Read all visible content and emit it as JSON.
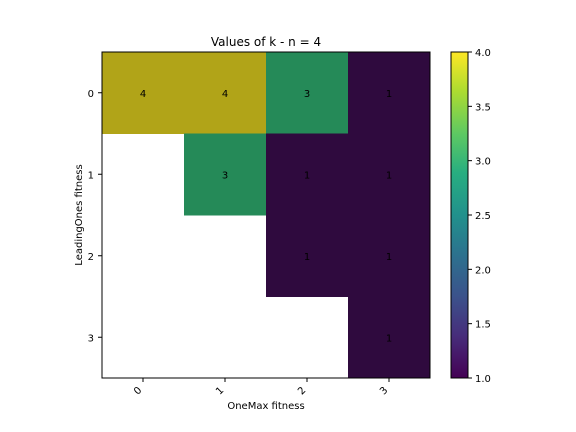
{
  "chart_data": {
    "type": "heatmap",
    "title": "Values of k - n = 4",
    "xlabel": "OneMax fitness",
    "ylabel": "LeadingOnes fitness",
    "x_ticks": [
      "0",
      "1",
      "2",
      "3"
    ],
    "y_ticks": [
      "0",
      "1",
      "2",
      "3"
    ],
    "cells": [
      {
        "row": 0,
        "col": 0,
        "value": 4
      },
      {
        "row": 0,
        "col": 1,
        "value": 4
      },
      {
        "row": 0,
        "col": 2,
        "value": 3
      },
      {
        "row": 0,
        "col": 3,
        "value": 1
      },
      {
        "row": 1,
        "col": 1,
        "value": 3
      },
      {
        "row": 1,
        "col": 2,
        "value": 1
      },
      {
        "row": 1,
        "col": 3,
        "value": 1
      },
      {
        "row": 2,
        "col": 2,
        "value": 1
      },
      {
        "row": 2,
        "col": 3,
        "value": 1
      },
      {
        "row": 3,
        "col": 3,
        "value": 1
      }
    ],
    "colorbar": {
      "min": 1.0,
      "max": 4.0,
      "ticks": [
        "1.0",
        "1.5",
        "2.0",
        "2.5",
        "3.0",
        "3.5",
        "4.0"
      ],
      "colormap": "viridis"
    },
    "colors": {
      "v1": "#2f0a3e",
      "v3": "#258a58",
      "v4": "#b1a418"
    }
  }
}
